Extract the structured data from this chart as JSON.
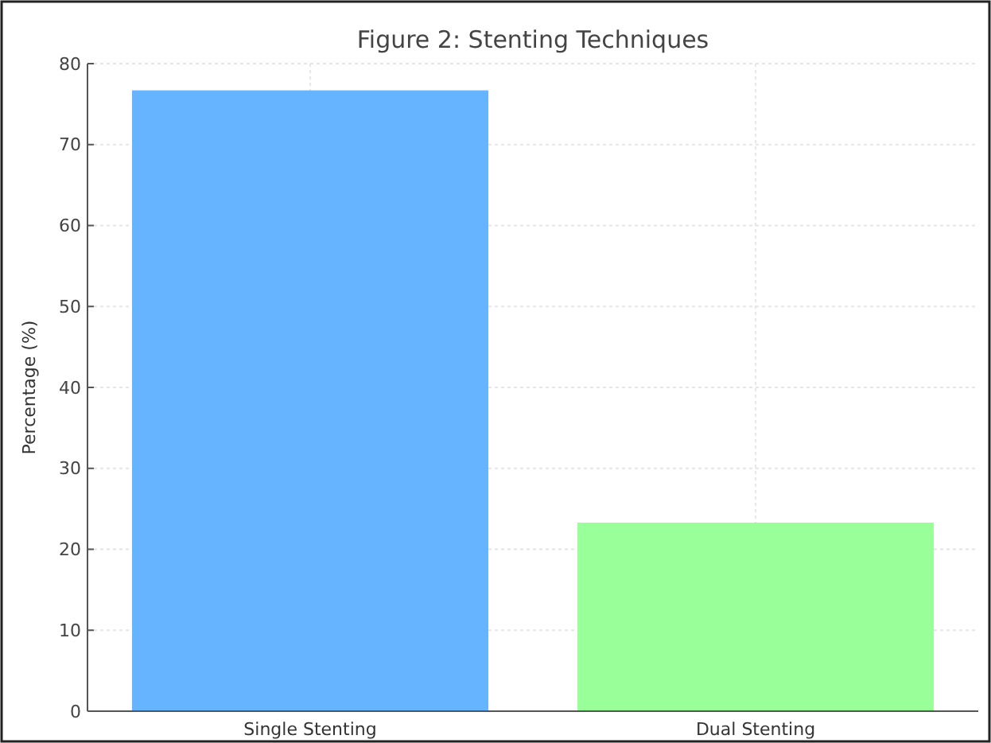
{
  "chart_data": {
    "type": "bar",
    "title": "Figure 2: Stenting Techniques",
    "ylabel": "Percentage (%)",
    "categories": [
      "Single Stenting",
      "Dual Stenting"
    ],
    "values": [
      76.7,
      23.3
    ],
    "colors": [
      "#66b3ff",
      "#99ff99"
    ],
    "ylim": [
      0,
      80
    ],
    "yticks": [
      0,
      10,
      20,
      30,
      40,
      50,
      60,
      70,
      80
    ],
    "grid": true
  }
}
